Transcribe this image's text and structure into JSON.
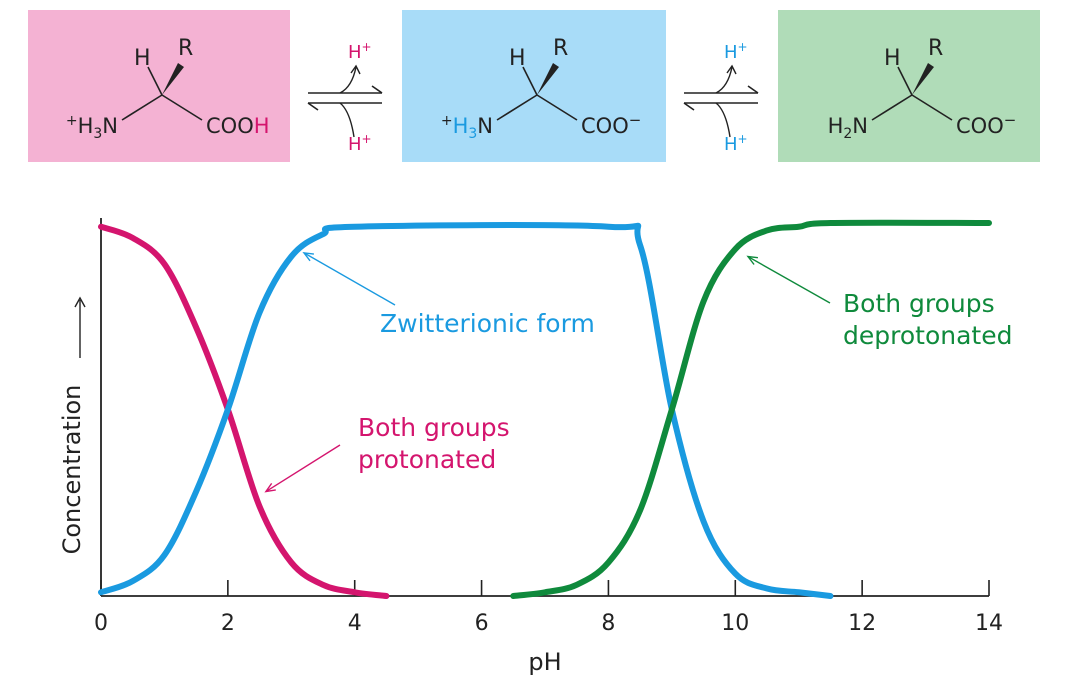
{
  "colors": {
    "protonated": "#d4156e",
    "zwitterion": "#1a9ae0",
    "deprotonated": "#0f8a3c",
    "protonated_box": "#f4b2d3",
    "zwitterion_box": "#a8dcf8",
    "deprotonated_box": "#b0dcb8",
    "text": "#222222"
  },
  "structures": [
    {
      "h": "H",
      "r": "R",
      "left": "+H3N",
      "right": "COOH"
    },
    {
      "h": "H",
      "r": "R",
      "left": "+H3N",
      "right": "COO−"
    },
    {
      "h": "H",
      "r": "R",
      "left": "H2N",
      "right": "COO−"
    }
  ],
  "equilibria": [
    {
      "top": "H+",
      "bottom": "H+"
    },
    {
      "top": "H+",
      "bottom": "H+"
    }
  ],
  "chart_data": {
    "type": "line",
    "xlabel": "pH",
    "ylabel": "Concentration",
    "xlim": [
      0,
      14
    ],
    "ylim": [
      0,
      1
    ],
    "xticks": [
      0,
      2,
      4,
      6,
      8,
      10,
      12,
      14
    ],
    "grid": false,
    "series": [
      {
        "name": "Both groups protonated",
        "x": [
          0,
          0.5,
          1.0,
          1.5,
          2.0,
          2.5,
          3.0,
          3.5,
          4.0,
          4.5
        ],
        "values": [
          0.99,
          0.96,
          0.89,
          0.72,
          0.5,
          0.24,
          0.09,
          0.03,
          0.01,
          0.0
        ]
      },
      {
        "name": "Zwitterionic form",
        "x": [
          0,
          0.5,
          1.0,
          1.5,
          2.0,
          2.5,
          3.0,
          3.5,
          4.0,
          8.0,
          8.5,
          9.0,
          9.5,
          10.0,
          10.5,
          11.0,
          11.5
        ],
        "values": [
          0.01,
          0.04,
          0.11,
          0.28,
          0.5,
          0.76,
          0.91,
          0.97,
          0.99,
          0.99,
          0.94,
          0.5,
          0.2,
          0.06,
          0.02,
          0.01,
          0.0
        ]
      },
      {
        "name": "Both groups deprotonated",
        "x": [
          6.5,
          7.0,
          7.5,
          8.0,
          8.5,
          9.0,
          9.5,
          10.0,
          10.5,
          11.0,
          11.5,
          14.0
        ],
        "values": [
          0.0,
          0.01,
          0.03,
          0.09,
          0.23,
          0.5,
          0.79,
          0.93,
          0.98,
          0.99,
          1.0,
          1.0
        ]
      }
    ],
    "annotations": [
      {
        "series": 1,
        "lines": [
          "Zwitterionic form"
        ],
        "point_x": 3.2,
        "point_y": 0.92
      },
      {
        "series": 2,
        "lines": [
          "Both groups",
          "deprotonated"
        ],
        "point_x": 10.2,
        "point_y": 0.91
      },
      {
        "series": 0,
        "lines": [
          "Both groups",
          "protonated"
        ],
        "point_x": 2.6,
        "point_y": 0.28
      }
    ]
  }
}
